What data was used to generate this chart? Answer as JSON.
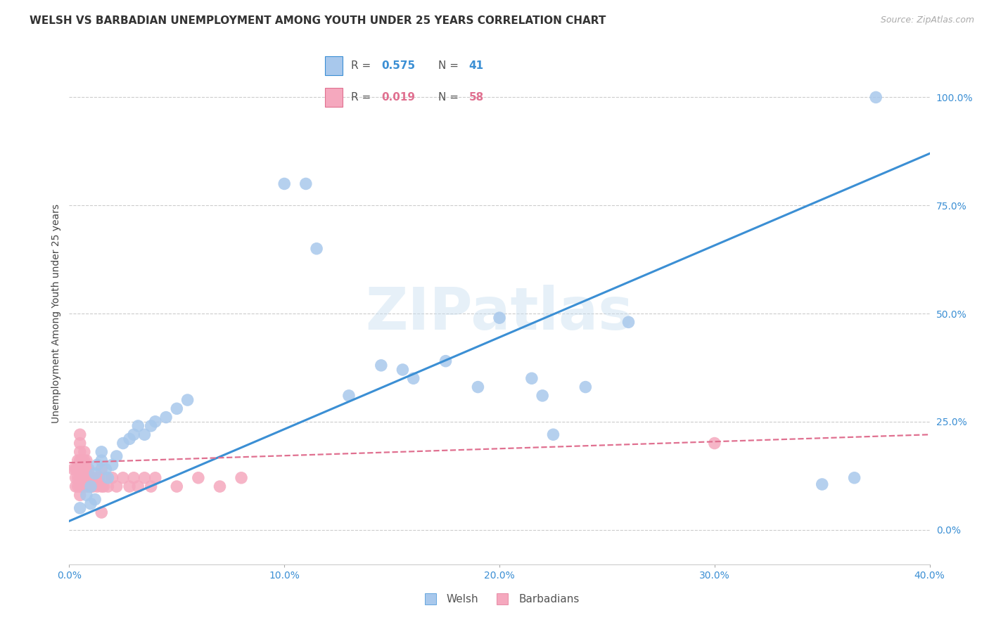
{
  "title": "WELSH VS BARBADIAN UNEMPLOYMENT AMONG YOUTH UNDER 25 YEARS CORRELATION CHART",
  "source": "Source: ZipAtlas.com",
  "ylabel": "Unemployment Among Youth under 25 years",
  "x_min": 0.0,
  "x_max": 0.4,
  "y_min": -0.08,
  "y_max": 1.08,
  "x_ticks": [
    0.0,
    0.1,
    0.2,
    0.3,
    0.4
  ],
  "x_tick_labels": [
    "0.0%",
    "10.0%",
    "20.0%",
    "30.0%",
    "40.0%"
  ],
  "y_ticks": [
    0.0,
    0.25,
    0.5,
    0.75,
    1.0
  ],
  "y_tick_labels": [
    "0.0%",
    "25.0%",
    "50.0%",
    "75.0%",
    "100.0%"
  ],
  "welsh_color": "#A8C8EC",
  "barbadian_color": "#F5A8BE",
  "welsh_line_color": "#3B8FD4",
  "barbadian_line_color": "#E07090",
  "welsh_R": 0.575,
  "welsh_N": 41,
  "barbadian_R": 0.019,
  "barbadian_N": 58,
  "background_color": "#FFFFFF",
  "grid_color": "#CCCCCC",
  "watermark": "ZIPatlas",
  "welsh_x": [
    0.005,
    0.008,
    0.01,
    0.01,
    0.012,
    0.012,
    0.013,
    0.015,
    0.015,
    0.017,
    0.018,
    0.02,
    0.022,
    0.025,
    0.028,
    0.03,
    0.032,
    0.035,
    0.038,
    0.04,
    0.045,
    0.05,
    0.055,
    0.1,
    0.11,
    0.115,
    0.13,
    0.145,
    0.155,
    0.16,
    0.175,
    0.19,
    0.2,
    0.215,
    0.22,
    0.225,
    0.24,
    0.26,
    0.35,
    0.365,
    0.375
  ],
  "welsh_y": [
    0.05,
    0.08,
    0.06,
    0.1,
    0.07,
    0.13,
    0.15,
    0.16,
    0.18,
    0.14,
    0.12,
    0.15,
    0.17,
    0.2,
    0.21,
    0.22,
    0.24,
    0.22,
    0.24,
    0.25,
    0.26,
    0.28,
    0.3,
    0.8,
    0.8,
    0.65,
    0.31,
    0.38,
    0.37,
    0.35,
    0.39,
    0.33,
    0.49,
    0.35,
    0.31,
    0.22,
    0.33,
    0.48,
    0.105,
    0.12,
    1.0
  ],
  "barbadian_x": [
    0.002,
    0.003,
    0.003,
    0.003,
    0.004,
    0.004,
    0.004,
    0.004,
    0.005,
    0.005,
    0.005,
    0.005,
    0.005,
    0.005,
    0.005,
    0.005,
    0.006,
    0.006,
    0.006,
    0.006,
    0.007,
    0.007,
    0.007,
    0.007,
    0.007,
    0.008,
    0.008,
    0.008,
    0.008,
    0.009,
    0.009,
    0.009,
    0.01,
    0.01,
    0.011,
    0.012,
    0.013,
    0.014,
    0.015,
    0.015,
    0.016,
    0.017,
    0.018,
    0.02,
    0.022,
    0.025,
    0.028,
    0.03,
    0.032,
    0.035,
    0.038,
    0.04,
    0.05,
    0.06,
    0.07,
    0.08,
    0.3,
    0.015
  ],
  "barbadian_y": [
    0.14,
    0.1,
    0.12,
    0.14,
    0.1,
    0.12,
    0.14,
    0.16,
    0.08,
    0.1,
    0.12,
    0.14,
    0.16,
    0.18,
    0.2,
    0.22,
    0.1,
    0.12,
    0.14,
    0.16,
    0.1,
    0.12,
    0.14,
    0.16,
    0.18,
    0.1,
    0.12,
    0.14,
    0.16,
    0.1,
    0.12,
    0.14,
    0.1,
    0.12,
    0.1,
    0.12,
    0.1,
    0.12,
    0.1,
    0.14,
    0.1,
    0.12,
    0.1,
    0.12,
    0.1,
    0.12,
    0.1,
    0.12,
    0.1,
    0.12,
    0.1,
    0.12,
    0.1,
    0.12,
    0.1,
    0.12,
    0.2,
    0.04
  ],
  "title_fontsize": 11,
  "axis_label_fontsize": 10,
  "tick_fontsize": 10,
  "legend_fontsize": 11
}
